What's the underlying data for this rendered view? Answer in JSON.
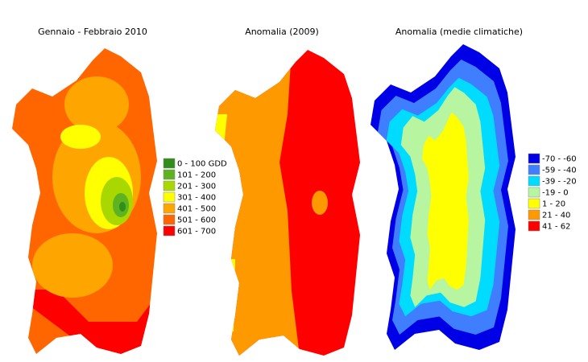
{
  "maps": [
    {
      "title": "Gennaio - Febbraio 2010",
      "legend": [
        {
          "label": "0 - 100 GDD",
          "color": "#2f8f1a"
        },
        {
          "label": "101 - 200",
          "color": "#5fb320"
        },
        {
          "label": "201 - 300",
          "color": "#a8d800"
        },
        {
          "label": "301 - 400",
          "color": "#ffff00"
        },
        {
          "label": "401 - 500",
          "color": "#ffa500"
        },
        {
          "label": "501 - 600",
          "color": "#ff6600"
        },
        {
          "label": "601 - 700",
          "color": "#ff0000"
        }
      ]
    },
    {
      "title": "Anomalia (2009)"
    },
    {
      "title": "Anomalia (medie climatiche)",
      "legend": [
        {
          "label": "-70 - -60",
          "color": "#0000e6"
        },
        {
          "label": "-59 - -40",
          "color": "#3f7fff"
        },
        {
          "label": "-39 - -20",
          "color": "#00dcff"
        },
        {
          "label": "-19 - 0",
          "color": "#b8f5a0"
        },
        {
          "label": "1 - 20",
          "color": "#ffff00"
        },
        {
          "label": "21 - 40",
          "color": "#ff9900"
        },
        {
          "label": "41 - 62",
          "color": "#ff0000"
        }
      ]
    }
  ]
}
